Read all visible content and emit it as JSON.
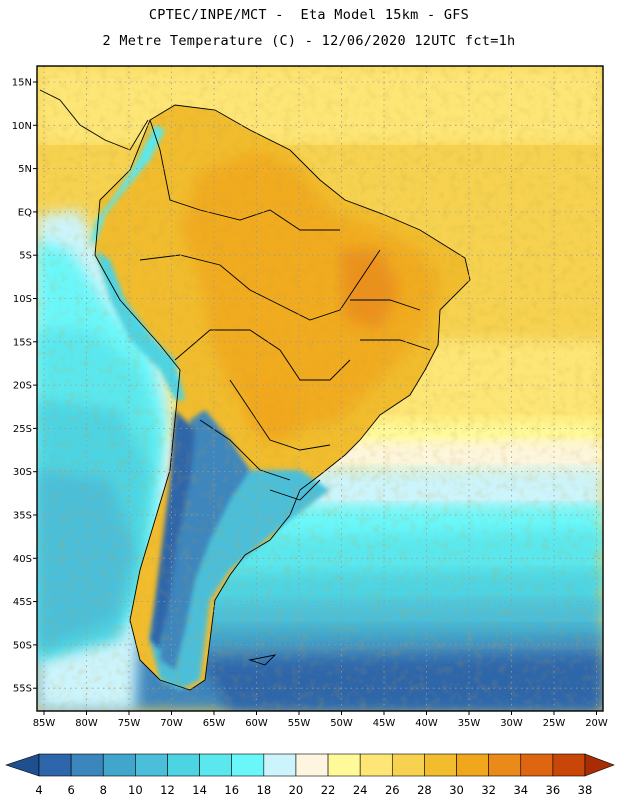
{
  "header": {
    "line1": "CPTEC/INPE/MCT -  Eta Model 15km - GFS",
    "line2": "2 Metre Temperature (C) - 12/06/2020 12UTC fct=1h"
  },
  "map": {
    "lat_labels": [
      "15N",
      "10N",
      "5N",
      "EQ",
      "5S",
      "10S",
      "15S",
      "20S",
      "25S",
      "30S",
      "35S",
      "40S",
      "45S",
      "50S",
      "55S"
    ],
    "lon_labels": [
      "85W",
      "80W",
      "75W",
      "70W",
      "65W",
      "60W",
      "55W",
      "50W",
      "45W",
      "40W",
      "35W",
      "30W",
      "25W",
      "20W"
    ],
    "gridline_color": "#9a9a9a"
  },
  "colorbar": {
    "labels": [
      "4",
      "6",
      "8",
      "10",
      "12",
      "14",
      "16",
      "18",
      "20",
      "22",
      "24",
      "26",
      "28",
      "30",
      "32",
      "34",
      "36",
      "38"
    ],
    "colors": [
      "#1f4f8f",
      "#2d66aa",
      "#3c86be",
      "#41a6cc",
      "#4bbfd9",
      "#4dd4e3",
      "#5ae8ee",
      "#6af7fa",
      "#ccf4fb",
      "#fdf5df",
      "#fffa99",
      "#fde676",
      "#f6d250",
      "#f1bd2e",
      "#f1a71c",
      "#ea8a1b",
      "#de6610",
      "#c84607",
      "#a82d05"
    ]
  }
}
